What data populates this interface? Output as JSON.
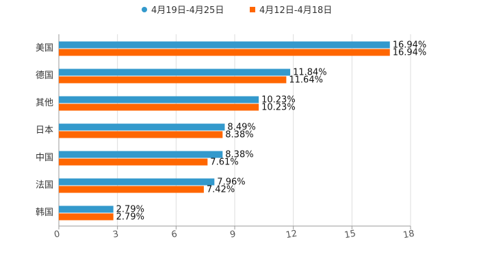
{
  "chart_data": {
    "type": "bar",
    "orientation": "horizontal",
    "title": "",
    "xlabel": "",
    "ylabel": "",
    "categories": [
      "美国",
      "德国",
      "其他",
      "日本",
      "中国",
      "法国",
      "韩国"
    ],
    "series": [
      {
        "name": "4月19日-4月25日",
        "color": "#3399cc",
        "marker": "circle",
        "values": [
          16.94,
          11.84,
          10.23,
          8.49,
          8.38,
          7.96,
          2.79
        ],
        "labels": [
          "16.94%",
          "11.84%",
          "10.23%",
          "8.49%",
          "8.38%",
          "7.96%",
          "2.79%"
        ]
      },
      {
        "name": "4月12日-4月18日",
        "color": "#ff6600",
        "marker": "square",
        "values": [
          16.94,
          11.64,
          10.23,
          8.38,
          7.61,
          7.42,
          2.79
        ],
        "labels": [
          "16.94%",
          "11.64%",
          "10.23%",
          "8.38%",
          "7.61%",
          "7.42%",
          "2.79%"
        ]
      }
    ],
    "xlim": [
      0,
      18
    ],
    "xticks": [
      0,
      3,
      6,
      9,
      12,
      15,
      18
    ],
    "xtick_labels": [
      "0",
      "3",
      "6",
      "9",
      "12",
      "15",
      "18"
    ],
    "grid": true,
    "legend_position": "top-center"
  }
}
